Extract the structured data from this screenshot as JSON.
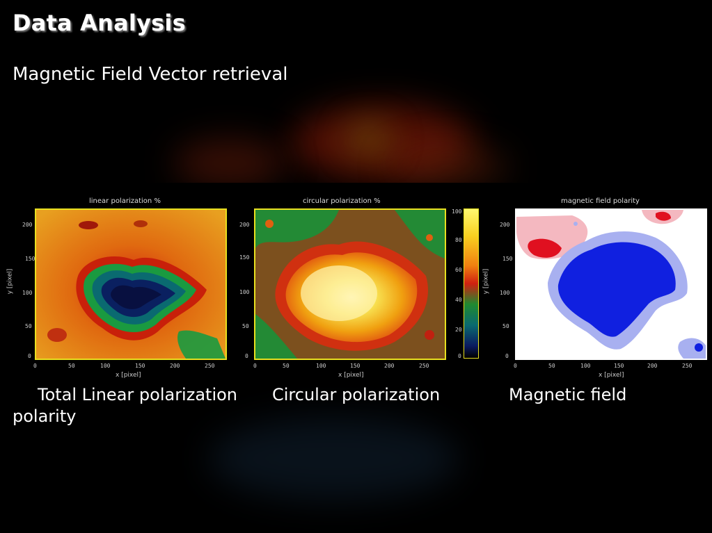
{
  "slide": {
    "title": "Data Analysis",
    "subtitle": "Magnetic Field Vector retrieval",
    "captions": {
      "linear": "Total Linear polarization",
      "circular": "Circular polarization",
      "magnetic": "Magnetic field",
      "polarity": "polarity"
    }
  },
  "plots": {
    "linear": {
      "title": "linear polarization %",
      "y_ticks": [
        "200",
        "150",
        "100",
        "50",
        "0"
      ],
      "x_ticks": [
        "0",
        "50",
        "100",
        "150",
        "200",
        "250"
      ],
      "xlabel": "x [pixel]",
      "ylabel": "y [pixel]"
    },
    "circular": {
      "title": "circular polarization %",
      "y_ticks": [
        "200",
        "150",
        "100",
        "50",
        "0"
      ],
      "x_ticks": [
        "0",
        "50",
        "100",
        "150",
        "200",
        "250"
      ],
      "xlabel": "x [pixel]",
      "colorbar_ticks": [
        "100",
        "80",
        "60",
        "40",
        "20",
        "0"
      ]
    },
    "magnetic": {
      "title": "magnetic field polarity",
      "y_ticks": [
        "200",
        "150",
        "100",
        "50",
        "0"
      ],
      "x_ticks": [
        "0",
        "50",
        "100",
        "150",
        "200",
        "250"
      ],
      "xlabel": "x [pixel]",
      "ylabel": "y [pixel]"
    }
  },
  "colors": {
    "frame": "#e8e020",
    "background": "#000000",
    "positive_polarity": "#1020e0",
    "negative_polarity": "#e01020"
  }
}
